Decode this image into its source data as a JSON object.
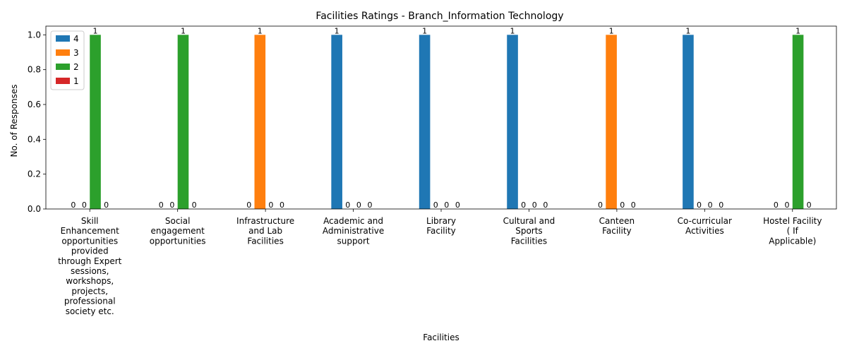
{
  "chart_data": {
    "type": "bar",
    "title": "Facilities Ratings - Branch_Information Technology",
    "xlabel": "Facilities",
    "ylabel": "No. of Responses",
    "ylim": [
      0,
      1.05
    ],
    "yticks": [
      0.0,
      0.2,
      0.4,
      0.6,
      0.8,
      1.0
    ],
    "ytick_labels": [
      "0.0",
      "0.2",
      "0.4",
      "0.6",
      "0.8",
      "1.0"
    ],
    "legend_position": "top-left",
    "grid": false,
    "categories": [
      "Skill Enhancement opportunities provided through Expert sessions, workshops, projects, professional society etc.",
      "Social engagement opportunities",
      "Infrastructure and Lab Facilities",
      "Academic and Administrative support",
      "Library Facility",
      "Cultural and Sports Facilities",
      "Canteen Facility",
      "Co-curricular Activities",
      "Hostel Facility ( If Applicable)"
    ],
    "category_label_lines": [
      [
        "Skill",
        "Enhancement",
        "opportunities",
        "provided",
        "through Expert",
        "sessions,",
        "workshops,",
        "projects,",
        "professional",
        "society etc."
      ],
      [
        "Social",
        "engagement",
        "opportunities"
      ],
      [
        "Infrastructure",
        "and Lab",
        "Facilities"
      ],
      [
        "Academic and",
        "Administrative",
        "support"
      ],
      [
        "Library",
        "Facility"
      ],
      [
        "Cultural and",
        "Sports",
        "Facilities"
      ],
      [
        "Canteen",
        "Facility"
      ],
      [
        "Co-curricular",
        "Activities"
      ],
      [
        "Hostel Facility",
        "( If",
        "Applicable)"
      ]
    ],
    "series": [
      {
        "name": "4",
        "color": "#1f77b4",
        "values": [
          0,
          0,
          0,
          1,
          1,
          1,
          0,
          1,
          0
        ]
      },
      {
        "name": "3",
        "color": "#ff7f0e",
        "values": [
          0,
          0,
          1,
          0,
          0,
          0,
          1,
          0,
          0
        ]
      },
      {
        "name": "2",
        "color": "#2ca02c",
        "values": [
          1,
          1,
          0,
          0,
          0,
          0,
          0,
          0,
          1
        ]
      },
      {
        "name": "1",
        "color": "#d62728",
        "values": [
          0,
          0,
          0,
          0,
          0,
          0,
          0,
          0,
          0
        ]
      }
    ]
  }
}
